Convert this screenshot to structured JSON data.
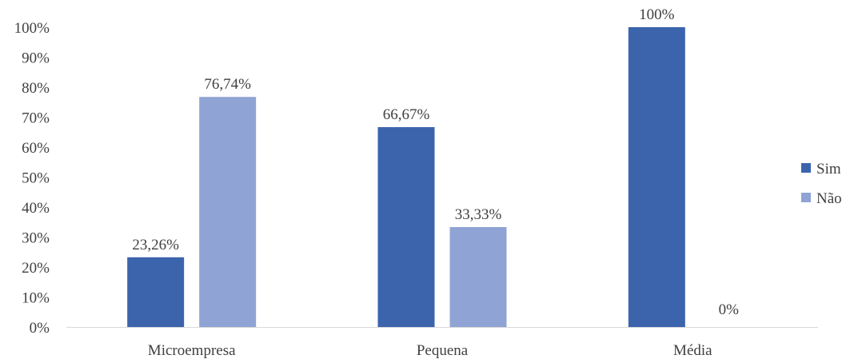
{
  "chart_data": {
    "type": "bar",
    "categories": [
      "Microempresa",
      "Pequena",
      "Média"
    ],
    "series": [
      {
        "name": "Sim",
        "color": "#3b64ad",
        "values": [
          23.26,
          66.67,
          100
        ],
        "labels": [
          "23,26%",
          "66,67%",
          "100%"
        ]
      },
      {
        "name": "Não",
        "color": "#8fa4d4",
        "values": [
          76.74,
          33.33,
          0
        ],
        "labels": [
          "76,74%",
          "33,33%",
          "0%"
        ]
      }
    ],
    "ylim": [
      0,
      100
    ],
    "yticks": [
      "0%",
      "10%",
      "20%",
      "30%",
      "40%",
      "50%",
      "60%",
      "70%",
      "80%",
      "90%",
      "100%"
    ],
    "grid": false,
    "legend": "right"
  }
}
